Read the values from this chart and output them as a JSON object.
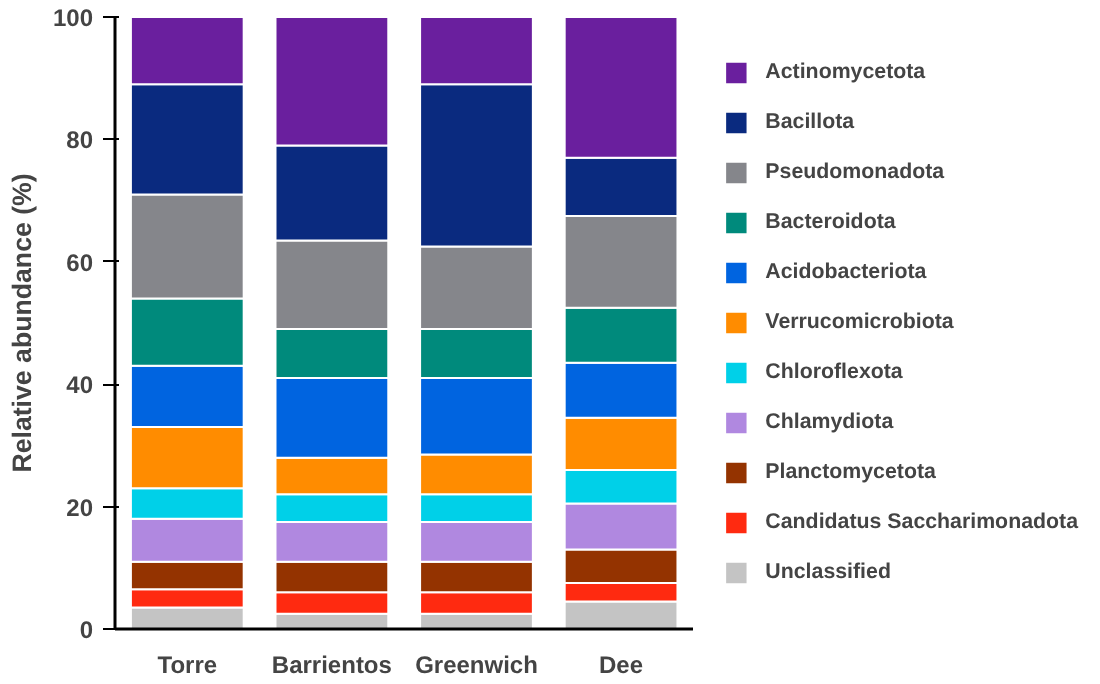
{
  "chart_data": {
    "type": "bar",
    "stacked": true,
    "ylabel": "Relative abundance (%)",
    "categories": [
      "Torre",
      "Barrientos",
      "Greenwich",
      "Dee"
    ],
    "ylim": [
      0,
      100
    ],
    "yticks": [
      0,
      20,
      40,
      60,
      80,
      100
    ],
    "grid": false,
    "legend": "right",
    "series": [
      {
        "name": "Unclassified",
        "color": "#c4c4c4",
        "values": [
          3.5,
          2.5,
          2.5,
          4.5
        ]
      },
      {
        "name": "Candidatus Saccharimonadota",
        "color": "#ff2a10",
        "values": [
          3,
          3.5,
          3.5,
          3
        ]
      },
      {
        "name": "Planctomycetota",
        "color": "#943300",
        "values": [
          4.5,
          5,
          5,
          5.5
        ]
      },
      {
        "name": "Chlamydiota",
        "color": "#b088e0",
        "values": [
          7,
          6.5,
          6.5,
          7.5
        ]
      },
      {
        "name": "Chloroflexota",
        "color": "#00d0e8",
        "values": [
          5,
          4.5,
          4.5,
          5.5
        ]
      },
      {
        "name": "Verrucomicrobiota",
        "color": "#ff8c00",
        "values": [
          10,
          6,
          6.5,
          8.5
        ]
      },
      {
        "name": "Acidobacteriota",
        "color": "#0064e0",
        "values": [
          10,
          13,
          12.5,
          9
        ]
      },
      {
        "name": "Bacteroidota",
        "color": "#008a7c",
        "values": [
          11,
          8,
          8,
          9
        ]
      },
      {
        "name": "Pseudomonadota",
        "color": "#85868b",
        "values": [
          17,
          14.5,
          13.5,
          15
        ]
      },
      {
        "name": "Bacillota",
        "color": "#0a2a7f",
        "values": [
          18,
          15.5,
          26.5,
          9.5
        ]
      },
      {
        "name": "Actinomycetota",
        "color": "#6a1f9e",
        "values": [
          11,
          21,
          11,
          23
        ]
      }
    ]
  }
}
